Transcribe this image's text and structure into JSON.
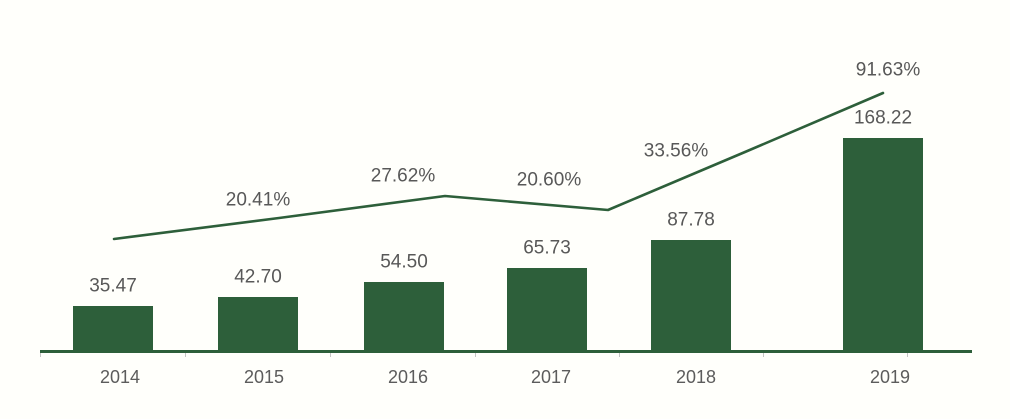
{
  "chart_data": {
    "type": "bar",
    "combo_line": true,
    "title": "",
    "xlabel": "",
    "ylabel": "",
    "categories": [
      "2014",
      "2015",
      "2016",
      "2017",
      "2018",
      "2019"
    ],
    "series": [
      {
        "name": "value-bars",
        "type": "bar",
        "values": [
          35.47,
          42.7,
          54.5,
          65.73,
          87.78,
          168.22
        ],
        "labels": [
          "35.47",
          "42.70",
          "54.50",
          "65.73",
          "87.78",
          "168.22"
        ],
        "color": "#2d5f3a"
      },
      {
        "name": "growth-rate-line",
        "type": "line",
        "values": [
          null,
          20.41,
          27.62,
          20.6,
          33.56,
          91.63
        ],
        "labels": [
          null,
          "20.41%",
          "27.62%",
          "20.60%",
          "33.56%",
          "91.63%"
        ],
        "color": "#2d5f3a"
      }
    ],
    "bar_ylim": [
      0,
      185
    ],
    "grid": false,
    "legend": false,
    "colors": {
      "series_green": "#2d5f3a",
      "label_gray": "#585858",
      "tick_gray": "#c4c4c4",
      "background": "#fffffb"
    }
  }
}
